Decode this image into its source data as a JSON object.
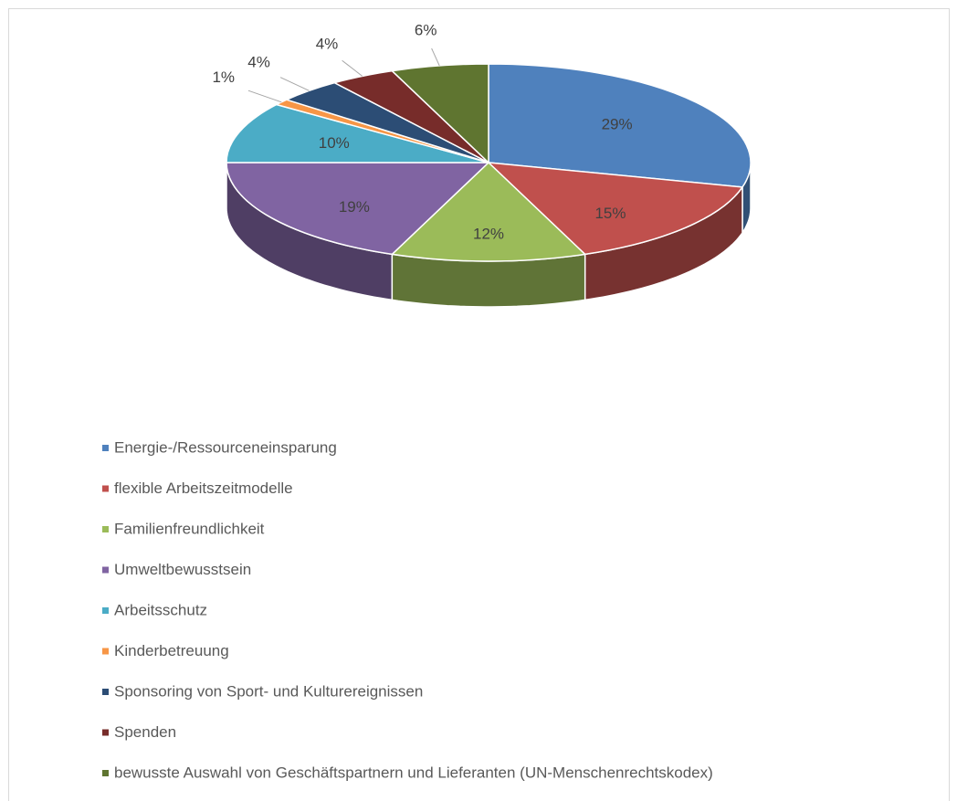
{
  "chart_data": {
    "type": "pie3d",
    "categories": [
      "Energie-/Ressourceneinsparung",
      "flexible Arbeitszeitmodelle",
      "Familienfreundlichkeit",
      "Umweltbewusstsein",
      "Arbeitsschutz",
      "Kinderbetreuung",
      "Sponsoring von Sport- und Kulturereignissen",
      "Spenden",
      "bewusste Auswahl von Geschäftspartnern und Lieferanten (UN-Menschenrechtskodex)"
    ],
    "values": [
      29,
      15,
      12,
      19,
      10,
      1,
      4,
      4,
      6
    ],
    "value_labels": [
      "29%",
      "15%",
      "12%",
      "19%",
      "10%",
      "1%",
      "4%",
      "4%",
      "6%"
    ],
    "colors": [
      "#4f81bd",
      "#c0504d",
      "#9bbb59",
      "#8064a2",
      "#4bacc6",
      "#f79646",
      "#2c4d75",
      "#772c2a",
      "#5f7530"
    ],
    "legend": "bottom"
  }
}
